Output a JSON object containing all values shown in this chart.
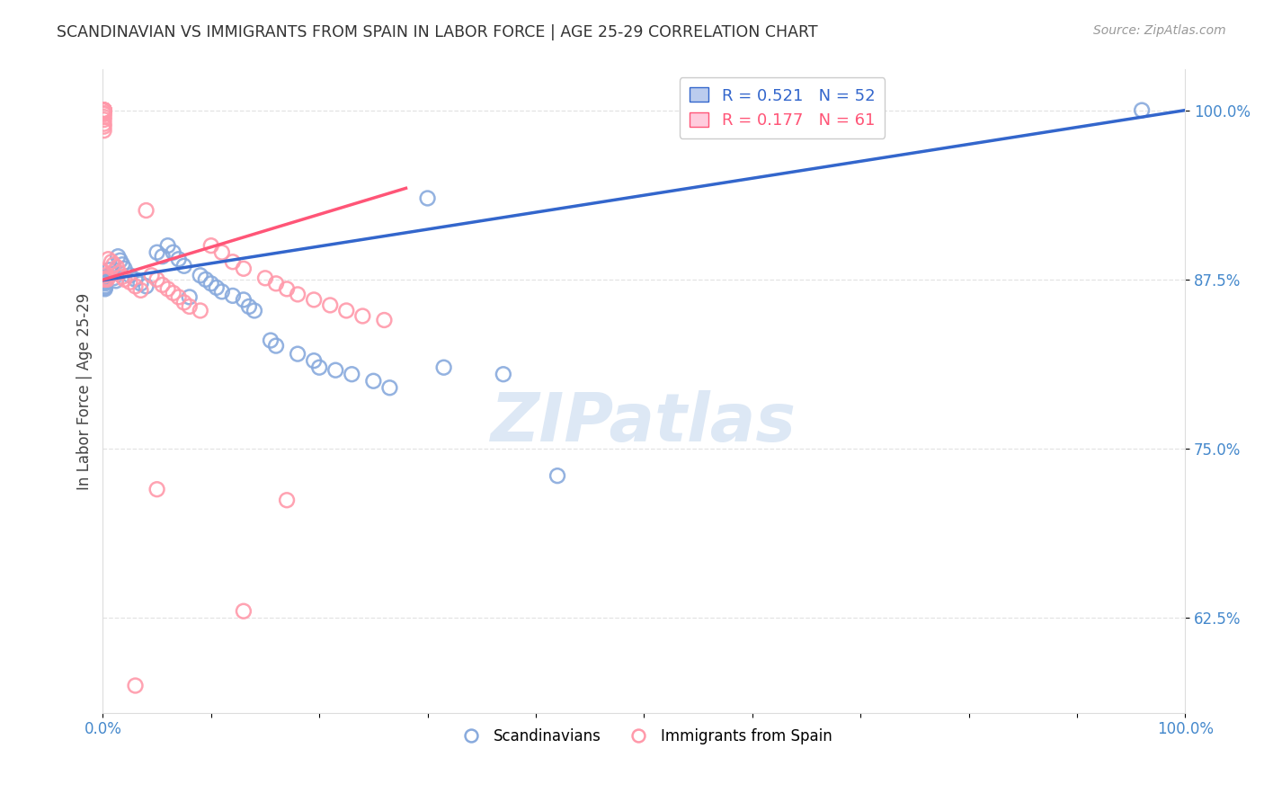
{
  "title": "SCANDINAVIAN VS IMMIGRANTS FROM SPAIN IN LABOR FORCE | AGE 25-29 CORRELATION CHART",
  "source": "Source: ZipAtlas.com",
  "ylabel": "In Labor Force | Age 25-29",
  "xlim": [
    0.0,
    1.0
  ],
  "ylim": [
    0.555,
    1.03
  ],
  "yticks": [
    0.625,
    0.75,
    0.875,
    1.0
  ],
  "ytick_labels": [
    "62.5%",
    "75.0%",
    "87.5%",
    "100.0%"
  ],
  "blue_R": 0.521,
  "blue_N": 52,
  "pink_R": 0.177,
  "pink_N": 61,
  "blue_color": "#88AADD",
  "pink_color": "#FF99AA",
  "blue_line_color": "#3366CC",
  "pink_line_color": "#FF5577",
  "title_color": "#333333",
  "source_color": "#999999",
  "axis_label_color": "#444444",
  "tick_color": "#4488CC",
  "grid_color": "#DDDDDD",
  "watermark_color": "#DDE8F5",
  "scandinavian_x": [
    0.002,
    0.002,
    0.002,
    0.002,
    0.002,
    0.002,
    0.002,
    0.002,
    0.002,
    0.004,
    0.006,
    0.008,
    0.01,
    0.012,
    0.014,
    0.016,
    0.018,
    0.02,
    0.025,
    0.03,
    0.035,
    0.04,
    0.05,
    0.055,
    0.06,
    0.065,
    0.07,
    0.075,
    0.08,
    0.09,
    0.095,
    0.1,
    0.105,
    0.11,
    0.12,
    0.13,
    0.135,
    0.14,
    0.155,
    0.16,
    0.18,
    0.195,
    0.2,
    0.215,
    0.23,
    0.25,
    0.265,
    0.3,
    0.315,
    0.37,
    0.42,
    0.96
  ],
  "scandinavian_y": [
    0.875,
    0.875,
    0.876,
    0.874,
    0.873,
    0.872,
    0.87,
    0.869,
    0.868,
    0.877,
    0.882,
    0.879,
    0.876,
    0.874,
    0.892,
    0.889,
    0.886,
    0.883,
    0.878,
    0.875,
    0.872,
    0.87,
    0.895,
    0.892,
    0.9,
    0.895,
    0.89,
    0.885,
    0.862,
    0.878,
    0.875,
    0.872,
    0.869,
    0.866,
    0.863,
    0.86,
    0.855,
    0.852,
    0.83,
    0.826,
    0.82,
    0.815,
    0.81,
    0.808,
    0.805,
    0.8,
    0.795,
    0.935,
    0.81,
    0.805,
    0.73,
    1.0
  ],
  "spain_x": [
    0.001,
    0.001,
    0.001,
    0.001,
    0.001,
    0.001,
    0.001,
    0.001,
    0.001,
    0.001,
    0.001,
    0.001,
    0.001,
    0.001,
    0.001,
    0.001,
    0.001,
    0.001,
    0.001,
    0.001,
    0.001,
    0.002,
    0.003,
    0.004,
    0.005,
    0.008,
    0.01,
    0.013,
    0.015,
    0.018,
    0.02,
    0.025,
    0.03,
    0.035,
    0.04,
    0.045,
    0.05,
    0.055,
    0.06,
    0.065,
    0.07,
    0.075,
    0.08,
    0.09,
    0.1,
    0.11,
    0.12,
    0.13,
    0.15,
    0.16,
    0.17,
    0.18,
    0.195,
    0.21,
    0.225,
    0.24,
    0.26,
    0.05,
    0.17,
    0.13,
    0.03
  ],
  "spain_y": [
    1.0,
    1.0,
    1.0,
    1.0,
    1.0,
    1.0,
    1.0,
    1.0,
    1.0,
    1.0,
    1.0,
    1.0,
    1.0,
    0.998,
    0.997,
    0.995,
    0.993,
    0.99,
    0.988,
    0.985,
    0.875,
    0.878,
    0.876,
    0.875,
    0.89,
    0.888,
    0.886,
    0.884,
    0.88,
    0.877,
    0.875,
    0.873,
    0.87,
    0.867,
    0.926,
    0.878,
    0.875,
    0.871,
    0.868,
    0.865,
    0.862,
    0.858,
    0.855,
    0.852,
    0.9,
    0.895,
    0.888,
    0.883,
    0.876,
    0.872,
    0.868,
    0.864,
    0.86,
    0.856,
    0.852,
    0.848,
    0.845,
    0.72,
    0.712,
    0.63,
    0.575
  ]
}
